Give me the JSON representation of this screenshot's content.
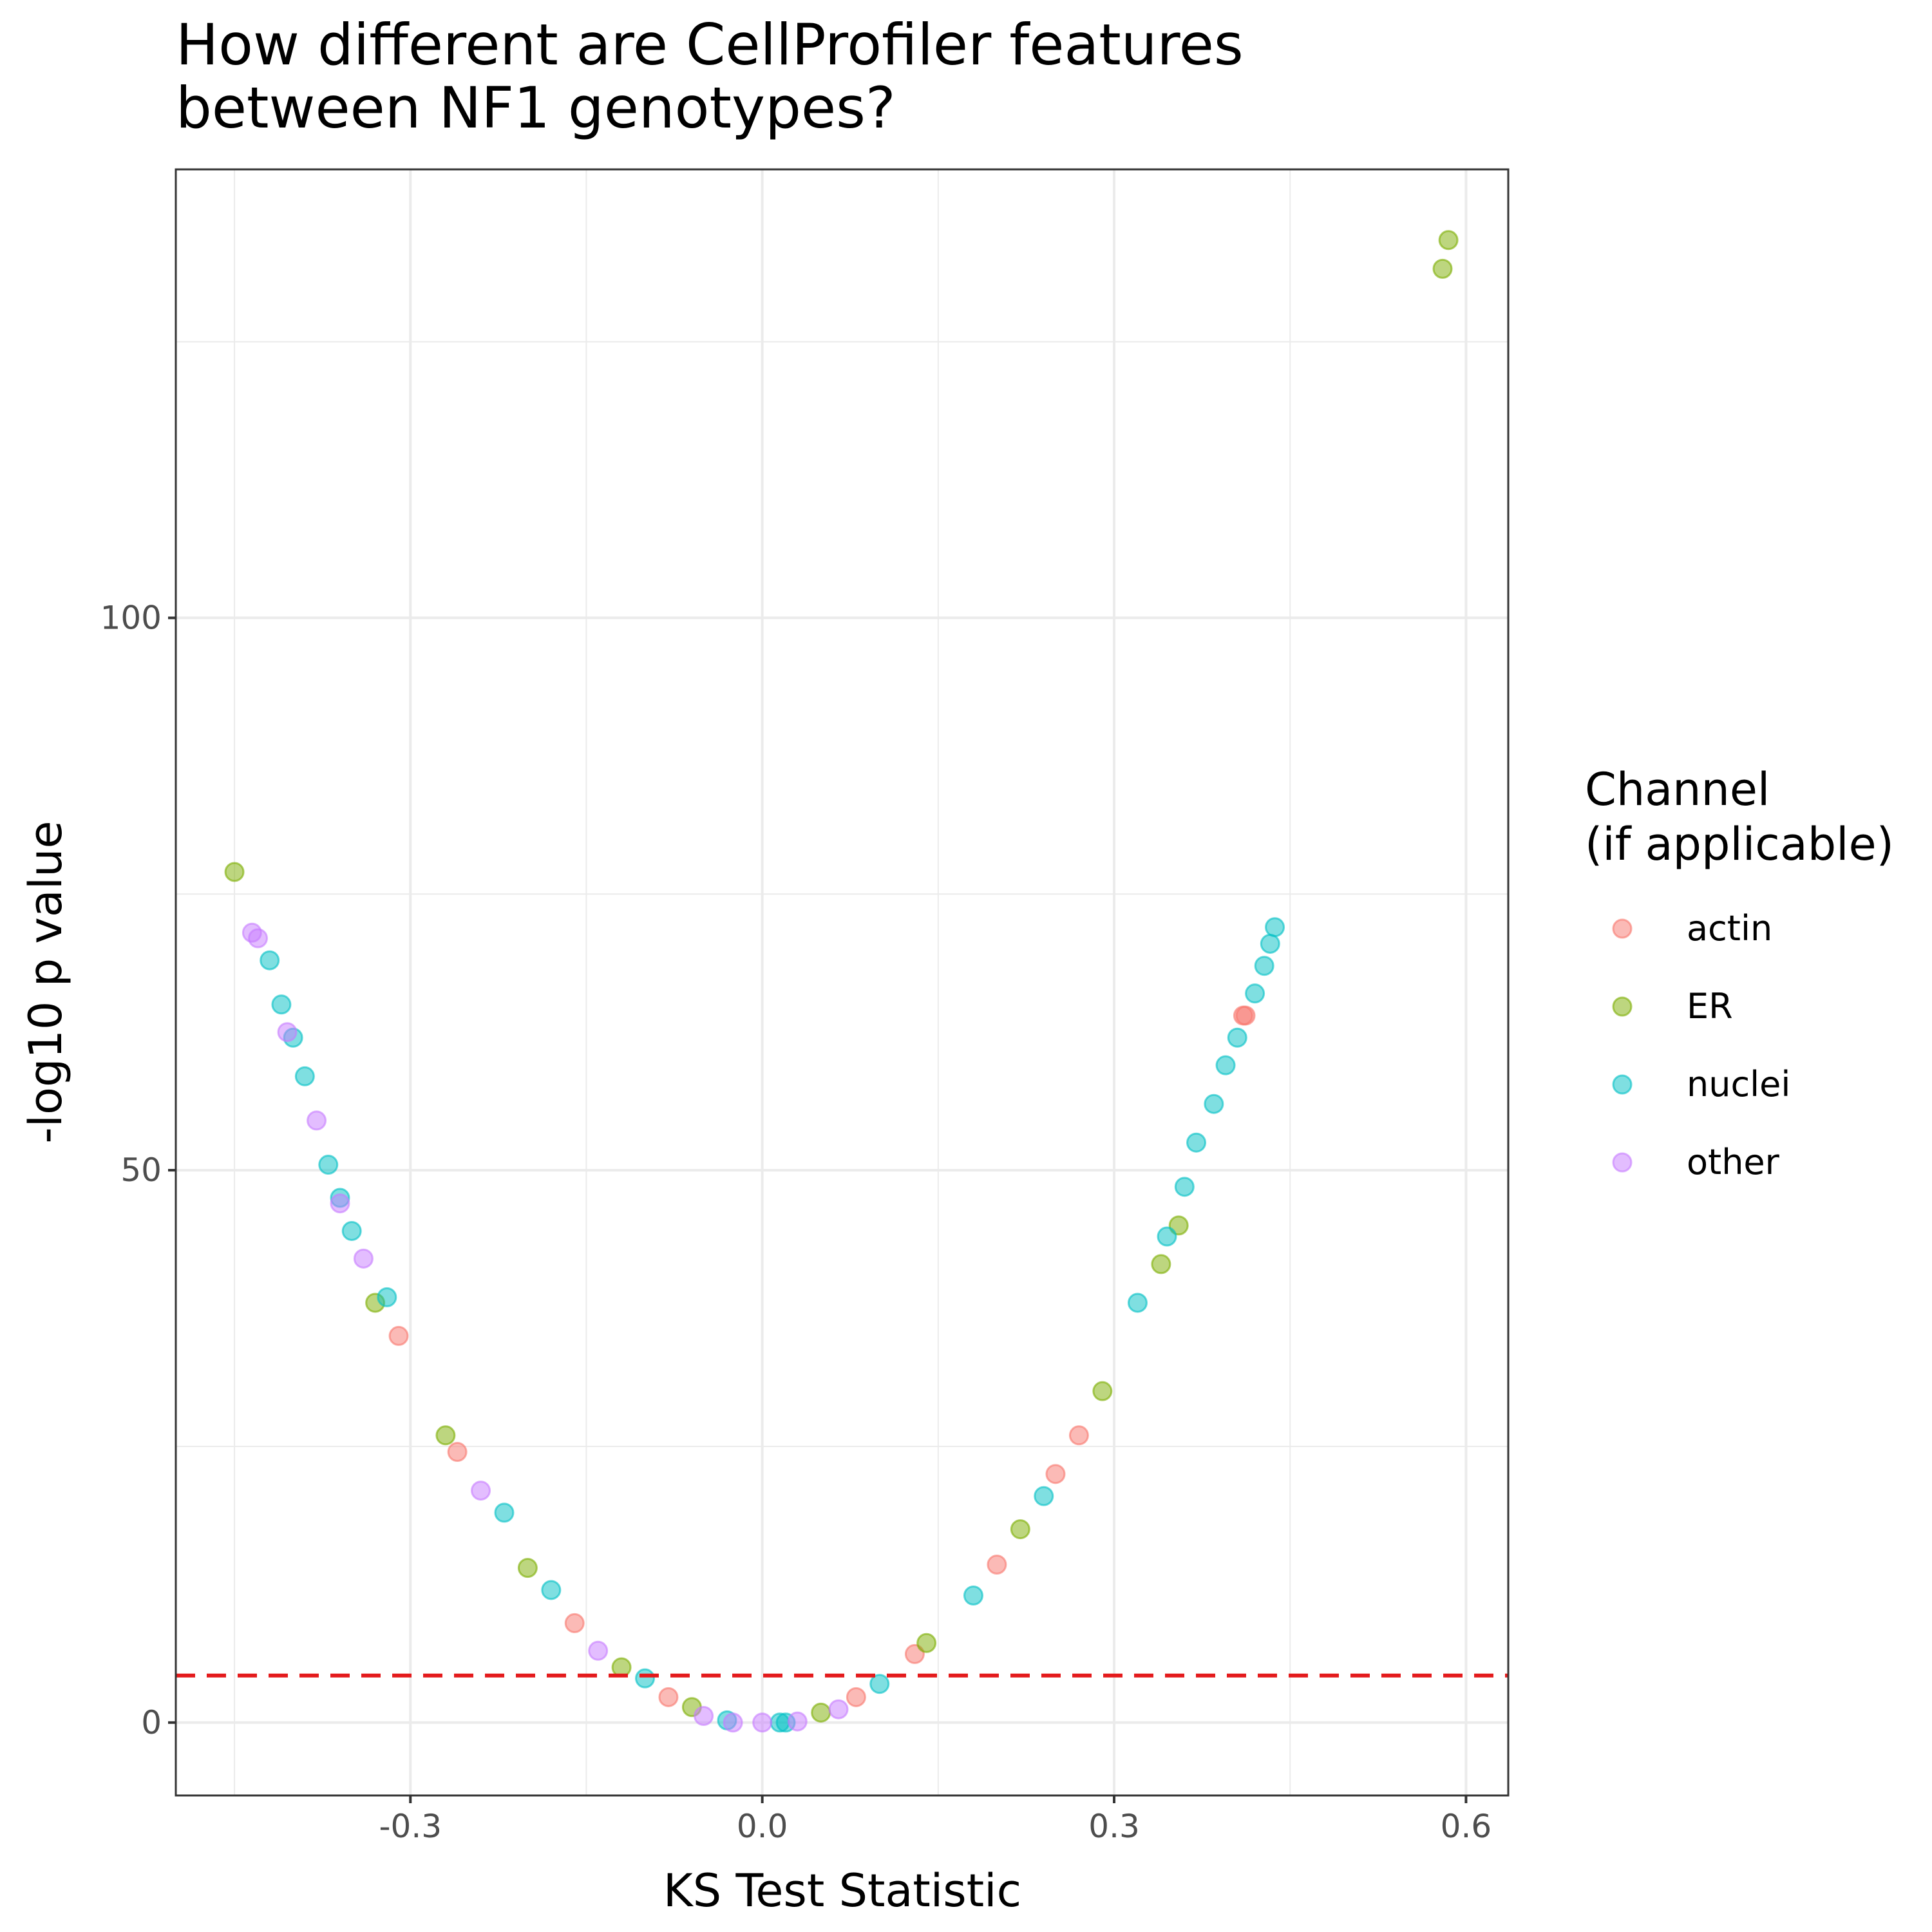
{
  "chart_data": {
    "type": "scatter",
    "title": [
      "How different are CellProfiler features",
      "between NF1 genotypes?"
    ],
    "x_label": "KS Test Statistic",
    "y_label": "-log10 p value",
    "legend_title": [
      "Channel",
      "(if applicable)"
    ],
    "legend_position": "right",
    "grid": true,
    "xlim": [
      -0.5,
      0.636
    ],
    "ylim": [
      -6.6,
      140.6
    ],
    "xticks": [
      -0.3,
      {
        "value": 0,
        "label": "0.0"
      },
      0.3,
      0.6
    ],
    "yticks": [
      0,
      50,
      100
    ],
    "x_minor_ticks": [
      -0.45,
      -0.15,
      0.15,
      0.45
    ],
    "y_minor_ticks": [
      25,
      75,
      125
    ],
    "hline": {
      "value": 4.26,
      "color": "#e41a1c",
      "style": "dashed"
    },
    "series": [
      {
        "name": "actin",
        "color": "#F8766D",
        "x": [
          0.41,
          0.412,
          0.13,
          0.25,
          0.27,
          -0.26,
          -0.31,
          -0.16,
          -0.08,
          0.08,
          0.2
        ],
        "values": [
          64,
          64,
          6.2,
          22.5,
          26,
          24.5,
          35,
          9,
          2.3,
          2.3,
          14.3
        ]
      },
      {
        "name": "ER",
        "color": "#7CAE00",
        "x": [
          0.585,
          0.58,
          -0.45,
          -0.33,
          -0.27,
          -0.2,
          -0.12,
          -0.06,
          0.05,
          0.14,
          0.22,
          0.29,
          0.34,
          0.355
        ],
        "values": [
          134.2,
          131.6,
          77,
          38,
          26,
          14,
          5,
          1.4,
          0.9,
          7.2,
          17.5,
          30,
          41.5,
          45
        ]
      },
      {
        "name": "nuclei",
        "color": "#00BFC4",
        "x": [
          0.437,
          0.433,
          0.428,
          0.42,
          0.405,
          0.395,
          0.385,
          0.37,
          0.36,
          0.345,
          0.32,
          0.24,
          0.18,
          0.1,
          0.015,
          0.02,
          -0.42,
          -0.41,
          -0.4,
          -0.39,
          -0.37,
          -0.36,
          -0.35,
          -0.32,
          -0.22,
          -0.18,
          -0.1,
          -0.03
        ],
        "values": [
          72,
          70.5,
          68.5,
          66,
          62,
          59.5,
          56,
          52.5,
          48.5,
          44,
          38,
          20.5,
          11.5,
          3.5,
          0,
          0,
          69,
          65,
          62,
          58.5,
          50.5,
          47.5,
          44.5,
          38.5,
          19,
          12,
          4,
          0.2
        ]
      },
      {
        "name": "other",
        "color": "#C77CFF",
        "x": [
          -0.435,
          -0.43,
          -0.405,
          -0.38,
          -0.36,
          -0.34,
          -0.24,
          -0.14,
          -0.05,
          -0.025,
          0,
          0.03,
          0.065
        ],
        "values": [
          71.5,
          71,
          62.5,
          54.5,
          47,
          42,
          21,
          6.5,
          0.6,
          0,
          0,
          0.1,
          1.2
        ]
      }
    ]
  }
}
